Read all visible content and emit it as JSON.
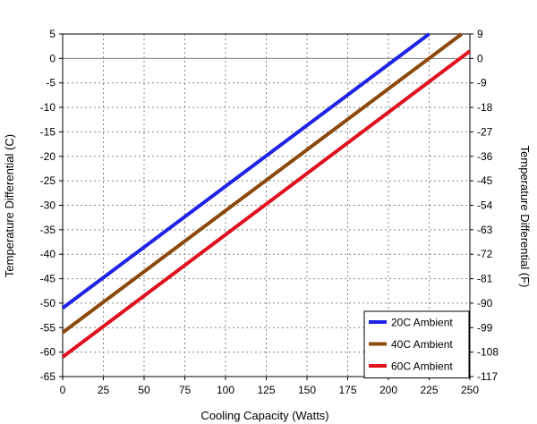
{
  "chart_data": {
    "type": "line",
    "xlabel": "Cooling Capacity (Watts)",
    "ylabel": "Temperature Differential (C)",
    "y2label": "Temperature Differential (F)",
    "xlim": [
      0,
      250
    ],
    "ylim": [
      -65,
      5
    ],
    "y2lim": [
      -117,
      9
    ],
    "x_ticks": [
      0,
      25,
      50,
      75,
      100,
      125,
      150,
      175,
      200,
      225,
      250
    ],
    "y_ticks": [
      5,
      0,
      -5,
      -10,
      -15,
      -20,
      -25,
      -30,
      -35,
      -40,
      -45,
      -50,
      -55,
      -60,
      -65
    ],
    "y2_ticks": [
      9,
      0,
      -9,
      -18,
      -27,
      -36,
      -45,
      -54,
      -63,
      -72,
      -81,
      -90,
      -99,
      -108,
      -117
    ],
    "grid": true,
    "legend_position": "bottom-right",
    "series": [
      {
        "name": "20C Ambient",
        "color": "#1f23e6",
        "x": [
          0,
          225
        ],
        "y": [
          -51,
          5
        ]
      },
      {
        "name": "40C Ambient",
        "color": "#8b4a0c",
        "x": [
          0,
          245
        ],
        "y": [
          -56,
          5
        ]
      },
      {
        "name": "60C Ambient",
        "color": "#e0101e",
        "x": [
          0,
          250
        ],
        "y": [
          -61,
          1.5
        ]
      }
    ]
  }
}
